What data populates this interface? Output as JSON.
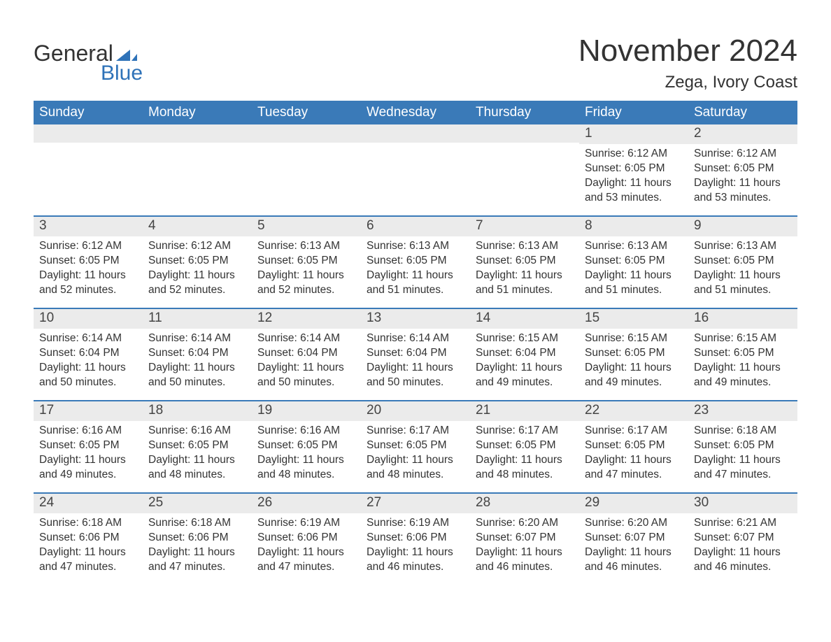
{
  "logo": {
    "word1": "General",
    "word2": "Blue",
    "accent_color": "#2e72b8"
  },
  "title": "November 2024",
  "location": "Zega, Ivory Coast",
  "colors": {
    "header_bg": "#3a7ab8",
    "header_text": "#ffffff",
    "row_border": "#3a7ab8",
    "daynum_bg": "#ebebeb",
    "text": "#333333",
    "page_bg": "#ffffff"
  },
  "font": {
    "family": "Arial",
    "title_size_pt": 33,
    "location_size_pt": 18,
    "weekday_size_pt": 14,
    "body_size_pt": 12
  },
  "weekdays": [
    "Sunday",
    "Monday",
    "Tuesday",
    "Wednesday",
    "Thursday",
    "Friday",
    "Saturday"
  ],
  "weeks": [
    [
      null,
      null,
      null,
      null,
      null,
      {
        "day": "1",
        "sunrise": "Sunrise: 6:12 AM",
        "sunset": "Sunset: 6:05 PM",
        "daylight1": "Daylight: 11 hours",
        "daylight2": "and 53 minutes."
      },
      {
        "day": "2",
        "sunrise": "Sunrise: 6:12 AM",
        "sunset": "Sunset: 6:05 PM",
        "daylight1": "Daylight: 11 hours",
        "daylight2": "and 53 minutes."
      }
    ],
    [
      {
        "day": "3",
        "sunrise": "Sunrise: 6:12 AM",
        "sunset": "Sunset: 6:05 PM",
        "daylight1": "Daylight: 11 hours",
        "daylight2": "and 52 minutes."
      },
      {
        "day": "4",
        "sunrise": "Sunrise: 6:12 AM",
        "sunset": "Sunset: 6:05 PM",
        "daylight1": "Daylight: 11 hours",
        "daylight2": "and 52 minutes."
      },
      {
        "day": "5",
        "sunrise": "Sunrise: 6:13 AM",
        "sunset": "Sunset: 6:05 PM",
        "daylight1": "Daylight: 11 hours",
        "daylight2": "and 52 minutes."
      },
      {
        "day": "6",
        "sunrise": "Sunrise: 6:13 AM",
        "sunset": "Sunset: 6:05 PM",
        "daylight1": "Daylight: 11 hours",
        "daylight2": "and 51 minutes."
      },
      {
        "day": "7",
        "sunrise": "Sunrise: 6:13 AM",
        "sunset": "Sunset: 6:05 PM",
        "daylight1": "Daylight: 11 hours",
        "daylight2": "and 51 minutes."
      },
      {
        "day": "8",
        "sunrise": "Sunrise: 6:13 AM",
        "sunset": "Sunset: 6:05 PM",
        "daylight1": "Daylight: 11 hours",
        "daylight2": "and 51 minutes."
      },
      {
        "day": "9",
        "sunrise": "Sunrise: 6:13 AM",
        "sunset": "Sunset: 6:05 PM",
        "daylight1": "Daylight: 11 hours",
        "daylight2": "and 51 minutes."
      }
    ],
    [
      {
        "day": "10",
        "sunrise": "Sunrise: 6:14 AM",
        "sunset": "Sunset: 6:04 PM",
        "daylight1": "Daylight: 11 hours",
        "daylight2": "and 50 minutes."
      },
      {
        "day": "11",
        "sunrise": "Sunrise: 6:14 AM",
        "sunset": "Sunset: 6:04 PM",
        "daylight1": "Daylight: 11 hours",
        "daylight2": "and 50 minutes."
      },
      {
        "day": "12",
        "sunrise": "Sunrise: 6:14 AM",
        "sunset": "Sunset: 6:04 PM",
        "daylight1": "Daylight: 11 hours",
        "daylight2": "and 50 minutes."
      },
      {
        "day": "13",
        "sunrise": "Sunrise: 6:14 AM",
        "sunset": "Sunset: 6:04 PM",
        "daylight1": "Daylight: 11 hours",
        "daylight2": "and 50 minutes."
      },
      {
        "day": "14",
        "sunrise": "Sunrise: 6:15 AM",
        "sunset": "Sunset: 6:04 PM",
        "daylight1": "Daylight: 11 hours",
        "daylight2": "and 49 minutes."
      },
      {
        "day": "15",
        "sunrise": "Sunrise: 6:15 AM",
        "sunset": "Sunset: 6:05 PM",
        "daylight1": "Daylight: 11 hours",
        "daylight2": "and 49 minutes."
      },
      {
        "day": "16",
        "sunrise": "Sunrise: 6:15 AM",
        "sunset": "Sunset: 6:05 PM",
        "daylight1": "Daylight: 11 hours",
        "daylight2": "and 49 minutes."
      }
    ],
    [
      {
        "day": "17",
        "sunrise": "Sunrise: 6:16 AM",
        "sunset": "Sunset: 6:05 PM",
        "daylight1": "Daylight: 11 hours",
        "daylight2": "and 49 minutes."
      },
      {
        "day": "18",
        "sunrise": "Sunrise: 6:16 AM",
        "sunset": "Sunset: 6:05 PM",
        "daylight1": "Daylight: 11 hours",
        "daylight2": "and 48 minutes."
      },
      {
        "day": "19",
        "sunrise": "Sunrise: 6:16 AM",
        "sunset": "Sunset: 6:05 PM",
        "daylight1": "Daylight: 11 hours",
        "daylight2": "and 48 minutes."
      },
      {
        "day": "20",
        "sunrise": "Sunrise: 6:17 AM",
        "sunset": "Sunset: 6:05 PM",
        "daylight1": "Daylight: 11 hours",
        "daylight2": "and 48 minutes."
      },
      {
        "day": "21",
        "sunrise": "Sunrise: 6:17 AM",
        "sunset": "Sunset: 6:05 PM",
        "daylight1": "Daylight: 11 hours",
        "daylight2": "and 48 minutes."
      },
      {
        "day": "22",
        "sunrise": "Sunrise: 6:17 AM",
        "sunset": "Sunset: 6:05 PM",
        "daylight1": "Daylight: 11 hours",
        "daylight2": "and 47 minutes."
      },
      {
        "day": "23",
        "sunrise": "Sunrise: 6:18 AM",
        "sunset": "Sunset: 6:05 PM",
        "daylight1": "Daylight: 11 hours",
        "daylight2": "and 47 minutes."
      }
    ],
    [
      {
        "day": "24",
        "sunrise": "Sunrise: 6:18 AM",
        "sunset": "Sunset: 6:06 PM",
        "daylight1": "Daylight: 11 hours",
        "daylight2": "and 47 minutes."
      },
      {
        "day": "25",
        "sunrise": "Sunrise: 6:18 AM",
        "sunset": "Sunset: 6:06 PM",
        "daylight1": "Daylight: 11 hours",
        "daylight2": "and 47 minutes."
      },
      {
        "day": "26",
        "sunrise": "Sunrise: 6:19 AM",
        "sunset": "Sunset: 6:06 PM",
        "daylight1": "Daylight: 11 hours",
        "daylight2": "and 47 minutes."
      },
      {
        "day": "27",
        "sunrise": "Sunrise: 6:19 AM",
        "sunset": "Sunset: 6:06 PM",
        "daylight1": "Daylight: 11 hours",
        "daylight2": "and 46 minutes."
      },
      {
        "day": "28",
        "sunrise": "Sunrise: 6:20 AM",
        "sunset": "Sunset: 6:07 PM",
        "daylight1": "Daylight: 11 hours",
        "daylight2": "and 46 minutes."
      },
      {
        "day": "29",
        "sunrise": "Sunrise: 6:20 AM",
        "sunset": "Sunset: 6:07 PM",
        "daylight1": "Daylight: 11 hours",
        "daylight2": "and 46 minutes."
      },
      {
        "day": "30",
        "sunrise": "Sunrise: 6:21 AM",
        "sunset": "Sunset: 6:07 PM",
        "daylight1": "Daylight: 11 hours",
        "daylight2": "and 46 minutes."
      }
    ]
  ]
}
